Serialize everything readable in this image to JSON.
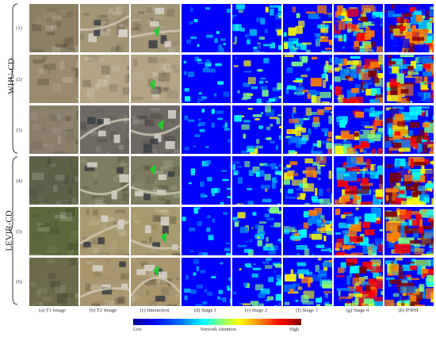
{
  "groups": [
    {
      "label": "WHU-CD",
      "rows": [
        "(1)",
        "(2)",
        "(3)"
      ]
    },
    {
      "label": "LEVIR-CD",
      "rows": [
        "(4)",
        "(5)",
        "(6)"
      ]
    }
  ],
  "columns": [
    "(a) T1 Image",
    "(b) T2 Image",
    "(c) Interaction",
    "(d) Stage 1",
    "(e) Stage 2",
    "(f) Stage 3",
    "(g) Stage 4",
    "(h) IFRM"
  ],
  "colorbar": {
    "low_label": "Low",
    "mid_label": "Network Attention",
    "high_label": "High",
    "colors": [
      "#00008f",
      "#0000ff",
      "#0080ff",
      "#00ffff",
      "#80ff80",
      "#ffff00",
      "#ff8000",
      "#ff0000",
      "#800000"
    ]
  },
  "row_themes": [
    {
      "photo": "#8c7f63",
      "photo_alt": "#a39677"
    },
    {
      "photo": "#9a8a6e",
      "photo_alt": "#b3a486"
    },
    {
      "photo": "#8a7f6b",
      "photo_alt": "#6e6a63"
    },
    {
      "photo": "#5f6048",
      "photo_alt": "#7d7c60"
    },
    {
      "photo": "#5d6a3e",
      "photo_alt": "#a89a70"
    },
    {
      "photo": "#6d6a4c",
      "photo_alt": "#a8966e"
    }
  ],
  "interaction_marker_color": "#22cc33"
}
